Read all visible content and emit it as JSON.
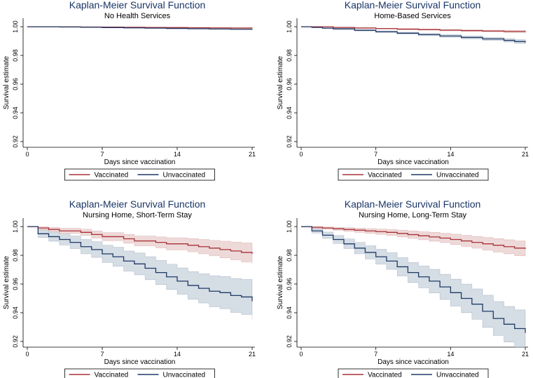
{
  "colors": {
    "vaccinated": "#a83238",
    "vaccinated_band": "#e8cccc",
    "unvaccinated": "#1f3a66",
    "unvaccinated_band": "#c7d1dc",
    "title": "#1a3566"
  },
  "chart_data": [
    {
      "type": "line",
      "title": "Kaplan-Meier Survival Function",
      "subtitle": "No Health Services",
      "xlabel": "Days since vaccination",
      "ylabel": "Survival estimate",
      "xticks": [
        "0",
        "7",
        "14",
        "21"
      ],
      "yticks": [
        "0.92",
        "0.94",
        "0.96",
        "0.98",
        "1.00"
      ],
      "xlim": [
        0,
        21
      ],
      "ylim": [
        0.918,
        1.002
      ],
      "legend": [
        "Vaccinated",
        "Unvaccinated"
      ],
      "series": [
        {
          "name": "Vaccinated",
          "x": [
            0,
            1,
            3,
            5,
            7,
            9,
            11,
            13,
            15,
            17,
            19,
            21
          ],
          "y": [
            1.0,
            1.0,
            0.9999,
            0.9998,
            0.9997,
            0.9996,
            0.9995,
            0.9994,
            0.9993,
            0.9992,
            0.9991,
            0.999
          ],
          "lower": [
            1.0,
            1.0,
            0.9998,
            0.9997,
            0.9996,
            0.9995,
            0.9994,
            0.9993,
            0.9992,
            0.9991,
            0.999,
            0.9989
          ],
          "upper": [
            1.0,
            1.0,
            1.0,
            0.9999,
            0.9998,
            0.9997,
            0.9996,
            0.9995,
            0.9994,
            0.9993,
            0.9992,
            0.9991
          ]
        },
        {
          "name": "Unvaccinated",
          "x": [
            0,
            1,
            3,
            5,
            7,
            9,
            11,
            13,
            15,
            17,
            19,
            21
          ],
          "y": [
            1.0,
            1.0,
            0.9998,
            0.9996,
            0.9994,
            0.9992,
            0.999,
            0.9988,
            0.9986,
            0.9984,
            0.9982,
            0.998
          ],
          "lower": [
            1.0,
            1.0,
            0.9997,
            0.9995,
            0.9993,
            0.9991,
            0.9989,
            0.9987,
            0.9985,
            0.9983,
            0.9981,
            0.9979
          ],
          "upper": [
            1.0,
            1.0,
            0.9999,
            0.9997,
            0.9995,
            0.9993,
            0.9991,
            0.9989,
            0.9987,
            0.9985,
            0.9983,
            0.9981
          ]
        }
      ]
    },
    {
      "type": "line",
      "title": "Kaplan-Meier Survival Function",
      "subtitle": "Home-Based Services",
      "xlabel": "Days since vaccination",
      "ylabel": "Survival estimate",
      "xticks": [
        "0",
        "7",
        "14",
        "21"
      ],
      "yticks": [
        "0.92",
        "0.94",
        "0.96",
        "0.98",
        "1.00"
      ],
      "xlim": [
        0,
        21
      ],
      "ylim": [
        0.918,
        1.002
      ],
      "legend": [
        "Vaccinated",
        "Unvaccinated"
      ],
      "series": [
        {
          "name": "Vaccinated",
          "x": [
            0,
            1,
            3,
            5,
            7,
            9,
            11,
            13,
            15,
            17,
            19,
            21
          ],
          "y": [
            1.0,
            1.0,
            0.9995,
            0.9991,
            0.9987,
            0.9983,
            0.998,
            0.9976,
            0.9973,
            0.997,
            0.9967,
            0.9963
          ],
          "lower": [
            1.0,
            1.0,
            0.9993,
            0.9989,
            0.9984,
            0.9979,
            0.9976,
            0.9971,
            0.9967,
            0.9964,
            0.996,
            0.9955
          ],
          "upper": [
            1.0,
            1.0,
            0.9997,
            0.9994,
            0.999,
            0.9987,
            0.9984,
            0.9981,
            0.9979,
            0.9976,
            0.9974,
            0.9971
          ]
        },
        {
          "name": "Unvaccinated",
          "x": [
            0,
            1,
            2,
            3,
            5,
            7,
            9,
            11,
            13,
            15,
            17,
            19,
            20,
            21
          ],
          "y": [
            1.0,
            0.9995,
            0.999,
            0.9985,
            0.9975,
            0.9965,
            0.9955,
            0.9945,
            0.9935,
            0.9925,
            0.9915,
            0.9905,
            0.9897,
            0.989
          ],
          "lower": [
            1.0,
            0.9993,
            0.9987,
            0.9981,
            0.997,
            0.9959,
            0.9948,
            0.9937,
            0.9926,
            0.9915,
            0.9904,
            0.9893,
            0.9884,
            0.9876
          ],
          "upper": [
            1.0,
            0.9997,
            0.9993,
            0.9989,
            0.998,
            0.9971,
            0.9962,
            0.9953,
            0.9944,
            0.9935,
            0.9926,
            0.9917,
            0.991,
            0.9904
          ]
        }
      ]
    },
    {
      "type": "line",
      "title": "Kaplan-Meier Survival Function",
      "subtitle": "Nursing Home, Short-Term Stay",
      "xlabel": "Days since vaccination",
      "ylabel": "Survival estimate",
      "xticks": [
        "0",
        "7",
        "14",
        "21"
      ],
      "yticks": [
        "0.92",
        "0.94",
        "0.96",
        "0.98",
        "1.00"
      ],
      "xlim": [
        0,
        21
      ],
      "ylim": [
        0.918,
        1.002
      ],
      "legend": [
        "Vaccinated",
        "Unvaccinated"
      ],
      "series": [
        {
          "name": "Vaccinated",
          "x": [
            0,
            1,
            2,
            3,
            5,
            6,
            7,
            9,
            10,
            12,
            13,
            15,
            16,
            17,
            18,
            19,
            20,
            21
          ],
          "y": [
            1.0,
            0.999,
            0.998,
            0.997,
            0.996,
            0.9945,
            0.993,
            0.9915,
            0.99,
            0.989,
            0.988,
            0.987,
            0.986,
            0.985,
            0.984,
            0.983,
            0.982,
            0.981
          ],
          "lower": [
            1.0,
            0.9978,
            0.9965,
            0.9952,
            0.9938,
            0.992,
            0.9902,
            0.9884,
            0.9866,
            0.9852,
            0.9838,
            0.9824,
            0.981,
            0.9796,
            0.9782,
            0.9768,
            0.9754,
            0.974
          ],
          "upper": [
            1.0,
            1.0,
            0.9995,
            0.9988,
            0.9982,
            0.997,
            0.9958,
            0.9946,
            0.9934,
            0.9928,
            0.9922,
            0.9916,
            0.991,
            0.9904,
            0.9898,
            0.9892,
            0.9886,
            0.988
          ]
        },
        {
          "name": "Unvaccinated",
          "x": [
            0,
            1,
            2,
            3,
            4,
            5,
            6,
            7,
            8,
            9,
            10,
            11,
            12,
            13,
            14,
            15,
            16,
            17,
            18,
            19,
            20,
            21
          ],
          "y": [
            1.0,
            0.995,
            0.993,
            0.991,
            0.989,
            0.986,
            0.984,
            0.981,
            0.979,
            0.976,
            0.974,
            0.971,
            0.968,
            0.965,
            0.962,
            0.959,
            0.957,
            0.955,
            0.954,
            0.952,
            0.951,
            0.948
          ],
          "lower": [
            1.0,
            0.9925,
            0.9898,
            0.9872,
            0.9846,
            0.981,
            0.9785,
            0.975,
            0.9724,
            0.969,
            0.9664,
            0.963,
            0.9596,
            0.9562,
            0.9528,
            0.9494,
            0.9468,
            0.9442,
            0.9428,
            0.9402,
            0.9388,
            0.9355
          ],
          "upper": [
            1.0,
            0.9975,
            0.9962,
            0.9948,
            0.9934,
            0.991,
            0.9895,
            0.987,
            0.9856,
            0.983,
            0.9816,
            0.979,
            0.9764,
            0.9738,
            0.9712,
            0.9686,
            0.9672,
            0.9658,
            0.9652,
            0.9638,
            0.9632,
            0.9605
          ]
        }
      ]
    },
    {
      "type": "line",
      "title": "Kaplan-Meier Survival Function",
      "subtitle": "Nursing Home, Long-Term Stay",
      "xlabel": "Days since vaccination",
      "ylabel": "Survival estimate",
      "xticks": [
        "0",
        "7",
        "14",
        "21"
      ],
      "yticks": [
        "0.92",
        "0.94",
        "0.96",
        "0.98",
        "1.00"
      ],
      "xlim": [
        0,
        21
      ],
      "ylim": [
        0.918,
        1.002
      ],
      "legend": [
        "Vaccinated",
        "Unvaccinated"
      ],
      "series": [
        {
          "name": "Vaccinated",
          "x": [
            0,
            1,
            2,
            3,
            4,
            5,
            6,
            7,
            8,
            9,
            10,
            11,
            12,
            13,
            14,
            15,
            16,
            17,
            18,
            19,
            20,
            21
          ],
          "y": [
            1.0,
            0.9995,
            0.999,
            0.9985,
            0.998,
            0.9975,
            0.997,
            0.9965,
            0.996,
            0.9952,
            0.9944,
            0.9936,
            0.9928,
            0.992,
            0.991,
            0.99,
            0.989,
            0.988,
            0.987,
            0.986,
            0.985,
            0.9845
          ],
          "lower": [
            1.0,
            0.9988,
            0.9981,
            0.9974,
            0.9967,
            0.996,
            0.9953,
            0.9946,
            0.9938,
            0.9928,
            0.9918,
            0.9908,
            0.9898,
            0.9888,
            0.9875,
            0.9862,
            0.9849,
            0.9836,
            0.9823,
            0.981,
            0.9797,
            0.979
          ],
          "upper": [
            1.0,
            1.0,
            0.9998,
            0.9995,
            0.9992,
            0.9989,
            0.9986,
            0.9983,
            0.998,
            0.9975,
            0.997,
            0.9965,
            0.996,
            0.9954,
            0.9947,
            0.994,
            0.9932,
            0.9924,
            0.9916,
            0.9908,
            0.99,
            0.9896
          ]
        },
        {
          "name": "Unvaccinated",
          "x": [
            0,
            1,
            2,
            3,
            4,
            5,
            6,
            7,
            8,
            9,
            10,
            11,
            12,
            13,
            14,
            15,
            16,
            17,
            18,
            19,
            20,
            21
          ],
          "y": [
            1.0,
            0.997,
            0.994,
            0.991,
            0.988,
            0.985,
            0.982,
            0.979,
            0.976,
            0.972,
            0.968,
            0.965,
            0.962,
            0.958,
            0.954,
            0.95,
            0.946,
            0.941,
            0.936,
            0.932,
            0.929,
            0.926
          ],
          "lower": [
            1.0,
            0.9955,
            0.9918,
            0.9882,
            0.9846,
            0.981,
            0.9774,
            0.9738,
            0.9702,
            0.9656,
            0.961,
            0.9574,
            0.9538,
            0.9492,
            0.9446,
            0.94,
            0.9354,
            0.9298,
            0.9242,
            0.9196,
            0.916,
            0.9125
          ],
          "upper": [
            1.0,
            0.9985,
            0.9962,
            0.9938,
            0.9914,
            0.989,
            0.9866,
            0.9842,
            0.9818,
            0.9784,
            0.975,
            0.9726,
            0.9702,
            0.9668,
            0.9634,
            0.96,
            0.9566,
            0.9522,
            0.9478,
            0.9444,
            0.942,
            0.9395
          ]
        }
      ]
    }
  ]
}
